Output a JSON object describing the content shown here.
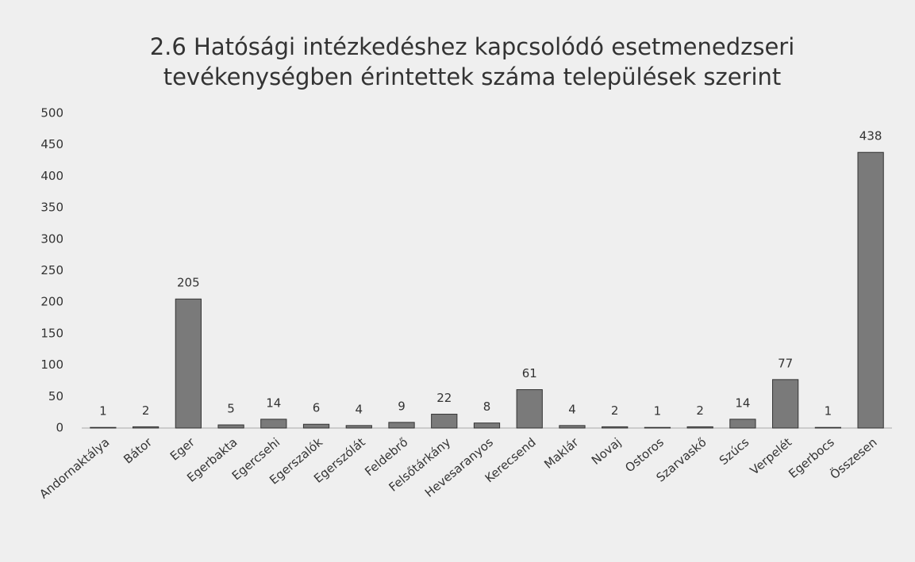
{
  "chart_data": {
    "type": "bar",
    "title": "2.6 Hatósági intézkedéshez kapcsolódó esetmenedzseri tevékenységben érintettek száma települések szerint",
    "categories": [
      "Andornaktálya",
      "Bátor",
      "Eger",
      "Egerbakta",
      "Egercsehi",
      "Egerszalók",
      "Egerszólát",
      "Feldebrő",
      "Felsőtárkány",
      "Hevesaranyos",
      "Kerecsend",
      "Maklár",
      "Novaj",
      "Ostoros",
      "Szarvaskő",
      "Szúcs",
      "Verpelét",
      "Egerbocs",
      "Összesen"
    ],
    "values": [
      1,
      2,
      205,
      5,
      14,
      6,
      4,
      9,
      22,
      8,
      61,
      4,
      2,
      1,
      2,
      14,
      77,
      1,
      438
    ],
    "color": "#7a7a7a",
    "ylim": [
      0,
      500
    ],
    "yticks": [
      0,
      50,
      100,
      150,
      200,
      250,
      300,
      350,
      400,
      450,
      500
    ],
    "grid": false
  }
}
